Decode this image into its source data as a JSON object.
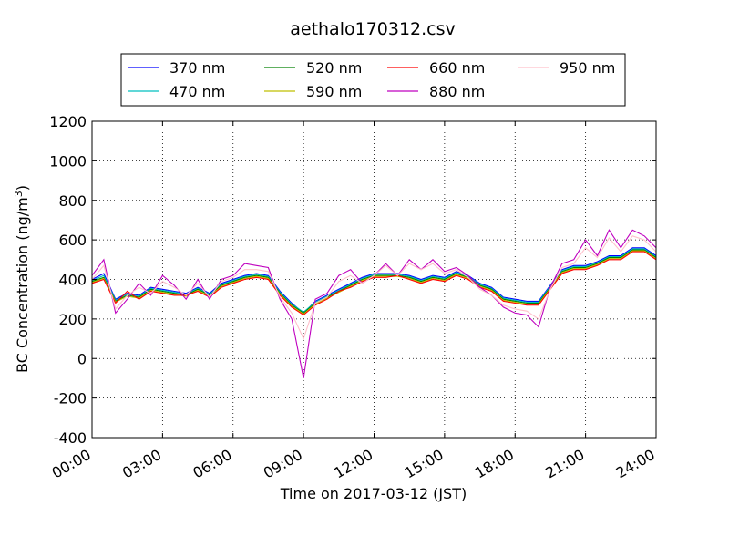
{
  "chart_data": {
    "type": "line",
    "title": "aethalo170312.csv",
    "xlabel": "Time on 2017-03-12 (JST)",
    "ylabel": "BC Concentration (ng/m³)",
    "ylabel_main": "BC Concentration (ng/m",
    "ylabel_sup": "3",
    "ylabel_end": ")",
    "xlim_hours": [
      0,
      24
    ],
    "ylim": [
      -400,
      1200
    ],
    "x_ticks": [
      {
        "hour": 0,
        "label": "00:00"
      },
      {
        "hour": 3,
        "label": "03:00"
      },
      {
        "hour": 6,
        "label": "06:00"
      },
      {
        "hour": 9,
        "label": "09:00"
      },
      {
        "hour": 12,
        "label": "12:00"
      },
      {
        "hour": 15,
        "label": "15:00"
      },
      {
        "hour": 18,
        "label": "18:00"
      },
      {
        "hour": 21,
        "label": "21:00"
      },
      {
        "hour": 24,
        "label": "24:00"
      }
    ],
    "y_ticks": [
      -400,
      -200,
      0,
      200,
      400,
      600,
      800,
      1000,
      1200
    ],
    "grid": true,
    "legend_position": "top",
    "x_hours": [
      0,
      0.5,
      1,
      1.5,
      2,
      2.5,
      3,
      3.5,
      4,
      4.5,
      5,
      5.5,
      6,
      6.5,
      7,
      7.5,
      8,
      8.5,
      9,
      9.5,
      10,
      10.5,
      11,
      11.5,
      12,
      12.5,
      13,
      13.5,
      14,
      14.5,
      15,
      15.5,
      16,
      16.5,
      17,
      17.5,
      18,
      18.5,
      19,
      19.5,
      20,
      20.5,
      21,
      21.5,
      22,
      22.5,
      23,
      23.5,
      24
    ],
    "series": [
      {
        "name": "370 nm",
        "color": "#0000ff",
        "values": [
          400,
          430,
          300,
          330,
          320,
          360,
          350,
          340,
          330,
          360,
          330,
          380,
          400,
          420,
          430,
          420,
          340,
          280,
          230,
          290,
          320,
          350,
          380,
          410,
          430,
          430,
          430,
          420,
          400,
          420,
          410,
          440,
          420,
          380,
          360,
          310,
          300,
          290,
          290,
          370,
          450,
          470,
          470,
          490,
          520,
          520,
          560,
          560,
          520
        ]
      },
      {
        "name": "470 nm",
        "color": "#00bfbf",
        "values": [
          395,
          420,
          295,
          325,
          315,
          355,
          345,
          335,
          325,
          355,
          325,
          375,
          395,
          415,
          425,
          415,
          335,
          275,
          235,
          285,
          315,
          345,
          375,
          405,
          425,
          425,
          425,
          415,
          395,
          415,
          405,
          435,
          415,
          375,
          355,
          305,
          295,
          285,
          285,
          365,
          445,
          465,
          465,
          485,
          515,
          515,
          555,
          555,
          515
        ]
      },
      {
        "name": "520 nm",
        "color": "#008000",
        "values": [
          390,
          410,
          290,
          320,
          310,
          350,
          340,
          330,
          320,
          350,
          320,
          370,
          390,
          410,
          420,
          410,
          330,
          270,
          230,
          280,
          310,
          340,
          370,
          400,
          420,
          420,
          420,
          410,
          390,
          410,
          400,
          430,
          410,
          370,
          350,
          300,
          290,
          280,
          280,
          360,
          440,
          460,
          460,
          480,
          510,
          510,
          550,
          550,
          510
        ]
      },
      {
        "name": "590 nm",
        "color": "#bfbf00",
        "values": [
          385,
          405,
          285,
          315,
          305,
          345,
          335,
          325,
          315,
          345,
          315,
          365,
          385,
          405,
          415,
          405,
          325,
          265,
          225,
          275,
          305,
          335,
          365,
          395,
          415,
          415,
          415,
          405,
          385,
          405,
          395,
          425,
          405,
          365,
          345,
          295,
          285,
          275,
          275,
          355,
          435,
          455,
          455,
          475,
          505,
          505,
          545,
          545,
          505
        ]
      },
      {
        "name": "660 nm",
        "color": "#ff0000",
        "values": [
          380,
          400,
          280,
          340,
          300,
          340,
          330,
          320,
          320,
          340,
          310,
          360,
          380,
          400,
          410,
          400,
          320,
          260,
          220,
          270,
          300,
          340,
          360,
          390,
          410,
          410,
          420,
          400,
          380,
          400,
          390,
          420,
          400,
          360,
          340,
          290,
          280,
          270,
          270,
          350,
          430,
          450,
          450,
          470,
          500,
          500,
          540,
          540,
          500
        ]
      },
      {
        "name": "880 nm",
        "color": "#bf00bf",
        "values": [
          420,
          500,
          230,
          300,
          380,
          320,
          420,
          370,
          300,
          400,
          300,
          400,
          420,
          480,
          470,
          460,
          300,
          200,
          -100,
          300,
          330,
          420,
          450,
          380,
          420,
          480,
          420,
          500,
          450,
          500,
          440,
          460,
          420,
          360,
          320,
          260,
          230,
          220,
          160,
          360,
          480,
          500,
          600,
          520,
          650,
          560,
          650,
          620,
          560
        ]
      },
      {
        "name": "950 nm",
        "color": "#ffc0cb",
        "values": [
          400,
          470,
          250,
          320,
          360,
          330,
          390,
          360,
          320,
          380,
          310,
          390,
          410,
          450,
          450,
          440,
          310,
          230,
          100,
          280,
          310,
          390,
          420,
          380,
          420,
          470,
          420,
          480,
          450,
          480,
          430,
          450,
          410,
          350,
          320,
          270,
          250,
          240,
          200,
          350,
          460,
          480,
          560,
          510,
          610,
          540,
          620,
          600,
          540
        ]
      }
    ]
  }
}
